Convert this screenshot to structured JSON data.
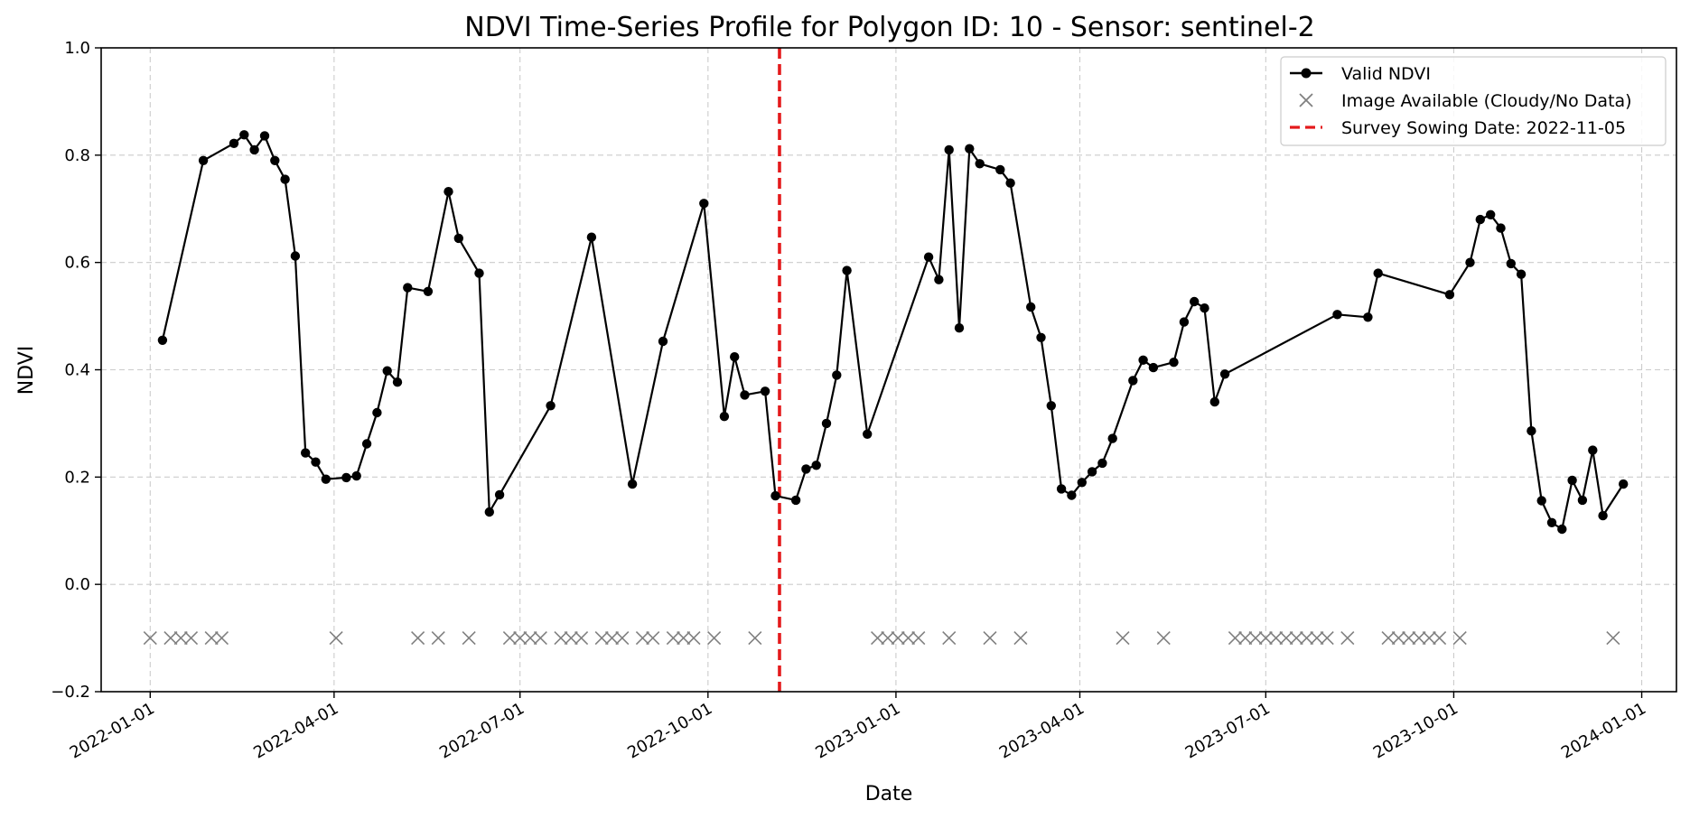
{
  "chart_data": {
    "type": "line",
    "title": "NDVI Time-Series Profile for Polygon ID: 10 - Sensor: sentinel-2",
    "xlabel": "Date",
    "ylabel": "NDVI",
    "xlim": [
      "2021-12-08",
      "2024-01-18"
    ],
    "ylim": [
      -0.2,
      1.0
    ],
    "grid": true,
    "legend_position": "top-right",
    "x_ticks": [
      "2022-01-01",
      "2022-04-01",
      "2022-07-01",
      "2022-10-01",
      "2023-01-01",
      "2023-04-01",
      "2023-07-01",
      "2023-10-01",
      "2024-01-01"
    ],
    "y_ticks": [
      "−0.2",
      "0.0",
      "0.2",
      "0.4",
      "0.6",
      "0.8",
      "1.0"
    ],
    "colors": {
      "valid": "#000000",
      "cloudy": "#808080",
      "survey": "#e41a1c",
      "grid": "#cccccc"
    },
    "series": [
      {
        "name": "Valid NDVI",
        "points": [
          [
            "2022-01-07",
            0.455
          ],
          [
            "2022-01-27",
            0.79
          ],
          [
            "2022-02-11",
            0.822
          ],
          [
            "2022-02-16",
            0.838
          ],
          [
            "2022-02-21",
            0.81
          ],
          [
            "2022-02-26",
            0.836
          ],
          [
            "2022-03-03",
            0.79
          ],
          [
            "2022-03-08",
            0.755
          ],
          [
            "2022-03-13",
            0.612
          ],
          [
            "2022-03-18",
            0.245
          ],
          [
            "2022-03-23",
            0.228
          ],
          [
            "2022-03-28",
            0.196
          ],
          [
            "2022-04-07",
            0.199
          ],
          [
            "2022-04-12",
            0.202
          ],
          [
            "2022-04-17",
            0.262
          ],
          [
            "2022-04-22",
            0.32
          ],
          [
            "2022-04-27",
            0.398
          ],
          [
            "2022-05-02",
            0.377
          ],
          [
            "2022-05-07",
            0.553
          ],
          [
            "2022-05-17",
            0.546
          ],
          [
            "2022-05-27",
            0.732
          ],
          [
            "2022-06-01",
            0.645
          ],
          [
            "2022-06-11",
            0.58
          ],
          [
            "2022-06-16",
            0.135
          ],
          [
            "2022-06-21",
            0.167
          ],
          [
            "2022-07-16",
            0.333
          ],
          [
            "2022-08-05",
            0.647
          ],
          [
            "2022-08-25",
            0.187
          ],
          [
            "2022-09-09",
            0.453
          ],
          [
            "2022-09-29",
            0.71
          ],
          [
            "2022-10-09",
            0.313
          ],
          [
            "2022-10-14",
            0.424
          ],
          [
            "2022-10-19",
            0.353
          ],
          [
            "2022-10-29",
            0.36
          ],
          [
            "2022-11-03",
            0.165
          ],
          [
            "2022-11-13",
            0.157
          ],
          [
            "2022-11-18",
            0.215
          ],
          [
            "2022-11-23",
            0.222
          ],
          [
            "2022-11-28",
            0.3
          ],
          [
            "2022-12-03",
            0.39
          ],
          [
            "2022-12-08",
            0.585
          ],
          [
            "2022-12-18",
            0.28
          ],
          [
            "2023-01-17",
            0.61
          ],
          [
            "2023-01-22",
            0.568
          ],
          [
            "2023-01-27",
            0.81
          ],
          [
            "2023-02-01",
            0.478
          ],
          [
            "2023-02-06",
            0.812
          ],
          [
            "2023-02-11",
            0.784
          ],
          [
            "2023-02-21",
            0.773
          ],
          [
            "2023-02-26",
            0.748
          ],
          [
            "2023-03-08",
            0.517
          ],
          [
            "2023-03-13",
            0.46
          ],
          [
            "2023-03-18",
            0.333
          ],
          [
            "2023-03-23",
            0.178
          ],
          [
            "2023-03-28",
            0.166
          ],
          [
            "2023-04-02",
            0.19
          ],
          [
            "2023-04-07",
            0.21
          ],
          [
            "2023-04-12",
            0.226
          ],
          [
            "2023-04-17",
            0.272
          ],
          [
            "2023-04-27",
            0.38
          ],
          [
            "2023-05-02",
            0.418
          ],
          [
            "2023-05-07",
            0.404
          ],
          [
            "2023-05-17",
            0.414
          ],
          [
            "2023-05-22",
            0.489
          ],
          [
            "2023-05-27",
            0.527
          ],
          [
            "2023-06-01",
            0.515
          ],
          [
            "2023-06-06",
            0.34
          ],
          [
            "2023-06-11",
            0.392
          ],
          [
            "2023-08-05",
            0.503
          ],
          [
            "2023-08-20",
            0.498
          ],
          [
            "2023-08-25",
            0.58
          ],
          [
            "2023-09-29",
            0.54
          ],
          [
            "2023-10-09",
            0.6
          ],
          [
            "2023-10-14",
            0.68
          ],
          [
            "2023-10-19",
            0.689
          ],
          [
            "2023-10-24",
            0.664
          ],
          [
            "2023-10-29",
            0.598
          ],
          [
            "2023-11-03",
            0.578
          ],
          [
            "2023-11-08",
            0.286
          ],
          [
            "2023-11-13",
            0.156
          ],
          [
            "2023-11-18",
            0.115
          ],
          [
            "2023-11-23",
            0.103
          ],
          [
            "2023-11-28",
            0.194
          ],
          [
            "2023-12-03",
            0.157
          ],
          [
            "2023-12-08",
            0.25
          ],
          [
            "2023-12-13",
            0.128
          ],
          [
            "2023-12-23",
            0.187
          ]
        ]
      },
      {
        "name": "Image Available (Cloudy/No Data)",
        "y": -0.1,
        "dates": [
          "2022-01-01",
          "2022-01-11",
          "2022-01-16",
          "2022-01-21",
          "2022-01-31",
          "2022-02-05",
          "2022-04-02",
          "2022-05-12",
          "2022-05-22",
          "2022-06-06",
          "2022-06-26",
          "2022-07-01",
          "2022-07-06",
          "2022-07-11",
          "2022-07-21",
          "2022-07-26",
          "2022-07-31",
          "2022-08-10",
          "2022-08-15",
          "2022-08-20",
          "2022-08-30",
          "2022-09-04",
          "2022-09-14",
          "2022-09-19",
          "2022-09-24",
          "2022-10-04",
          "2022-10-24",
          "2022-12-23",
          "2022-12-28",
          "2023-01-02",
          "2023-01-07",
          "2023-01-12",
          "2023-01-27",
          "2023-02-16",
          "2023-03-03",
          "2023-04-22",
          "2023-05-12",
          "2023-06-16",
          "2023-06-21",
          "2023-06-26",
          "2023-07-01",
          "2023-07-06",
          "2023-07-11",
          "2023-07-16",
          "2023-07-21",
          "2023-07-26",
          "2023-07-31",
          "2023-08-10",
          "2023-08-30",
          "2023-09-04",
          "2023-09-09",
          "2023-09-14",
          "2023-09-19",
          "2023-09-24",
          "2023-10-04",
          "2023-12-18"
        ]
      },
      {
        "name": "Survey Sowing Date: 2022-11-05",
        "date": "2022-11-05"
      }
    ]
  }
}
